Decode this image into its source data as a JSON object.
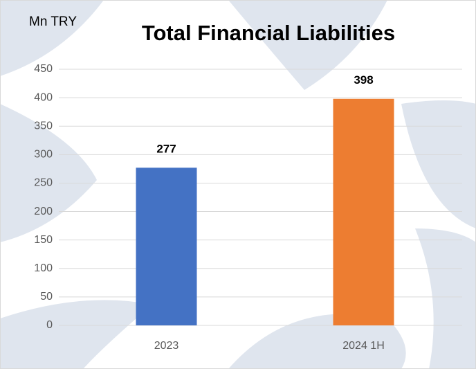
{
  "chart_data": {
    "type": "bar",
    "title": "Total Financial Liabilities",
    "y_axis_label": "Mn TRY",
    "categories": [
      "2023",
      "2024 1H"
    ],
    "values": [
      277,
      398
    ],
    "colors": [
      "#4472c4",
      "#ed7d31"
    ],
    "ylim": [
      0,
      450
    ],
    "yticks": [
      0,
      50,
      100,
      150,
      200,
      250,
      300,
      350,
      400,
      450
    ],
    "grid": true
  }
}
